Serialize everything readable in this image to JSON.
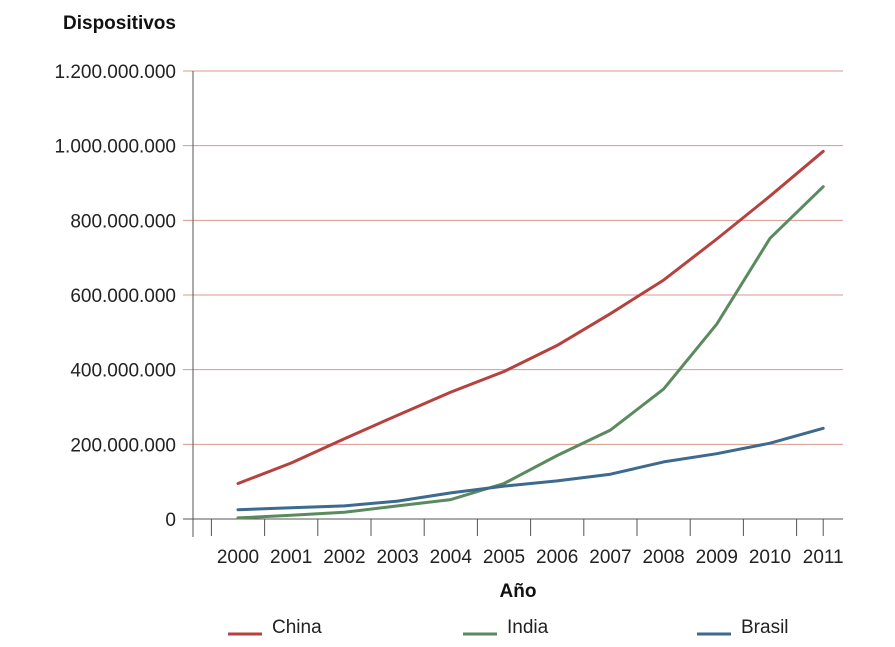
{
  "chart_data": {
    "type": "line",
    "title": "",
    "ylabel": "Dispositivos",
    "xlabel": "Año",
    "x": [
      "2000",
      "2001",
      "2002",
      "2003",
      "2004",
      "2005",
      "2006",
      "2007",
      "2008",
      "2009",
      "2010",
      "2011"
    ],
    "ylim": [
      0,
      1200000000
    ],
    "yticks": [
      0,
      200000000,
      400000000,
      600000000,
      800000000,
      1000000000,
      1200000000
    ],
    "ytick_labels": [
      "0",
      "200.000.000",
      "400.000.000",
      "600.000.000",
      "800.000.000",
      "1.000.000.000",
      "1.200.000.000"
    ],
    "grid": true,
    "legend_position": "bottom",
    "series": [
      {
        "name": "China",
        "color": "#b5423f",
        "values": [
          95000000,
          150000000,
          215000000,
          278000000,
          340000000,
          395000000,
          465000000,
          550000000,
          640000000,
          750000000,
          865000000,
          985000000
        ]
      },
      {
        "name": "India",
        "color": "#5a8a5e",
        "values": [
          3000000,
          10000000,
          18000000,
          35000000,
          52000000,
          95000000,
          170000000,
          238000000,
          348000000,
          522000000,
          752000000,
          890000000
        ]
      },
      {
        "name": "Brasil",
        "color": "#3d6a8e",
        "values": [
          25000000,
          30000000,
          35000000,
          48000000,
          70000000,
          88000000,
          102000000,
          120000000,
          153000000,
          175000000,
          203000000,
          243000000
        ]
      }
    ]
  }
}
